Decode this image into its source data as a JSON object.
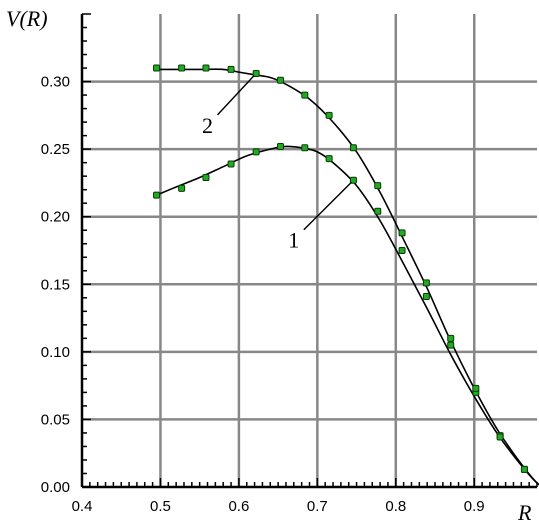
{
  "chart_data": {
    "type": "line",
    "xlabel": "R",
    "ylabel": "V(R)",
    "xlim": [
      0.4,
      0.98
    ],
    "ylim": [
      0.0,
      0.35
    ],
    "x_ticks": [
      0.4,
      0.5,
      0.6,
      0.7,
      0.8,
      0.9
    ],
    "x_tick_labels": [
      "0.4",
      "0.5",
      "0.6",
      "0.7",
      "0.8",
      "0.9"
    ],
    "y_ticks": [
      0.0,
      0.05,
      0.1,
      0.15,
      0.2,
      0.25,
      0.3
    ],
    "y_tick_labels": [
      "0.00",
      "0.05",
      "0.10",
      "0.15",
      "0.20",
      "0.25",
      "0.30"
    ],
    "grid": true,
    "colors": {
      "curve": "#000000",
      "marker_fill": "#22aa22",
      "marker_stroke": "#0a3a0a",
      "grid": "#888888"
    },
    "series": [
      {
        "name": "1",
        "curve": [
          [
            0.495,
            0.216
          ],
          [
            0.52,
            0.222
          ],
          [
            0.55,
            0.229
          ],
          [
            0.58,
            0.237
          ],
          [
            0.61,
            0.245
          ],
          [
            0.64,
            0.25
          ],
          [
            0.66,
            0.252
          ],
          [
            0.68,
            0.251
          ],
          [
            0.7,
            0.248
          ],
          [
            0.72,
            0.24
          ],
          [
            0.75,
            0.223
          ],
          [
            0.78,
            0.197
          ],
          [
            0.81,
            0.165
          ],
          [
            0.84,
            0.132
          ],
          [
            0.87,
            0.098
          ],
          [
            0.9,
            0.067
          ],
          [
            0.93,
            0.039
          ],
          [
            0.96,
            0.016
          ],
          [
            0.98,
            0.003
          ],
          [
            0.99,
            0.0
          ]
        ],
        "points": [
          [
            0.495,
            0.216
          ],
          [
            0.527,
            0.221
          ],
          [
            0.558,
            0.229
          ],
          [
            0.59,
            0.239
          ],
          [
            0.622,
            0.248
          ],
          [
            0.653,
            0.252
          ],
          [
            0.684,
            0.251
          ],
          [
            0.715,
            0.243
          ],
          [
            0.746,
            0.227
          ],
          [
            0.777,
            0.204
          ],
          [
            0.808,
            0.175
          ],
          [
            0.839,
            0.141
          ],
          [
            0.87,
            0.105
          ],
          [
            0.902,
            0.07
          ],
          [
            0.933,
            0.038
          ],
          [
            0.964,
            0.013
          ],
          [
            0.99,
            0.0
          ]
        ]
      },
      {
        "name": "2",
        "curve": [
          [
            0.495,
            0.309
          ],
          [
            0.52,
            0.309
          ],
          [
            0.55,
            0.309
          ],
          [
            0.58,
            0.309
          ],
          [
            0.6,
            0.307
          ],
          [
            0.62,
            0.305
          ],
          [
            0.64,
            0.303
          ],
          [
            0.66,
            0.298
          ],
          [
            0.69,
            0.287
          ],
          [
            0.72,
            0.27
          ],
          [
            0.75,
            0.248
          ],
          [
            0.78,
            0.218
          ],
          [
            0.81,
            0.183
          ],
          [
            0.84,
            0.147
          ],
          [
            0.87,
            0.108
          ],
          [
            0.9,
            0.073
          ],
          [
            0.93,
            0.042
          ],
          [
            0.96,
            0.017
          ],
          [
            0.98,
            0.003
          ],
          [
            0.99,
            0.0
          ]
        ],
        "points": [
          [
            0.495,
            0.31
          ],
          [
            0.527,
            0.31
          ],
          [
            0.558,
            0.31
          ],
          [
            0.59,
            0.309
          ],
          [
            0.622,
            0.306
          ],
          [
            0.653,
            0.301
          ],
          [
            0.684,
            0.29
          ],
          [
            0.715,
            0.275
          ],
          [
            0.746,
            0.251
          ],
          [
            0.777,
            0.223
          ],
          [
            0.808,
            0.188
          ],
          [
            0.839,
            0.151
          ],
          [
            0.87,
            0.11
          ],
          [
            0.902,
            0.073
          ],
          [
            0.933,
            0.037
          ],
          [
            0.964,
            0.013
          ],
          [
            0.99,
            0.0
          ]
        ]
      }
    ],
    "annotations": [
      {
        "text": "1",
        "series": "1",
        "at": [
          0.746,
          0.227
        ],
        "label_at": [
          0.67,
          0.18
        ]
      },
      {
        "text": "2",
        "series": "2",
        "at": [
          0.622,
          0.306
        ],
        "label_at": [
          0.56,
          0.265
        ]
      }
    ]
  }
}
